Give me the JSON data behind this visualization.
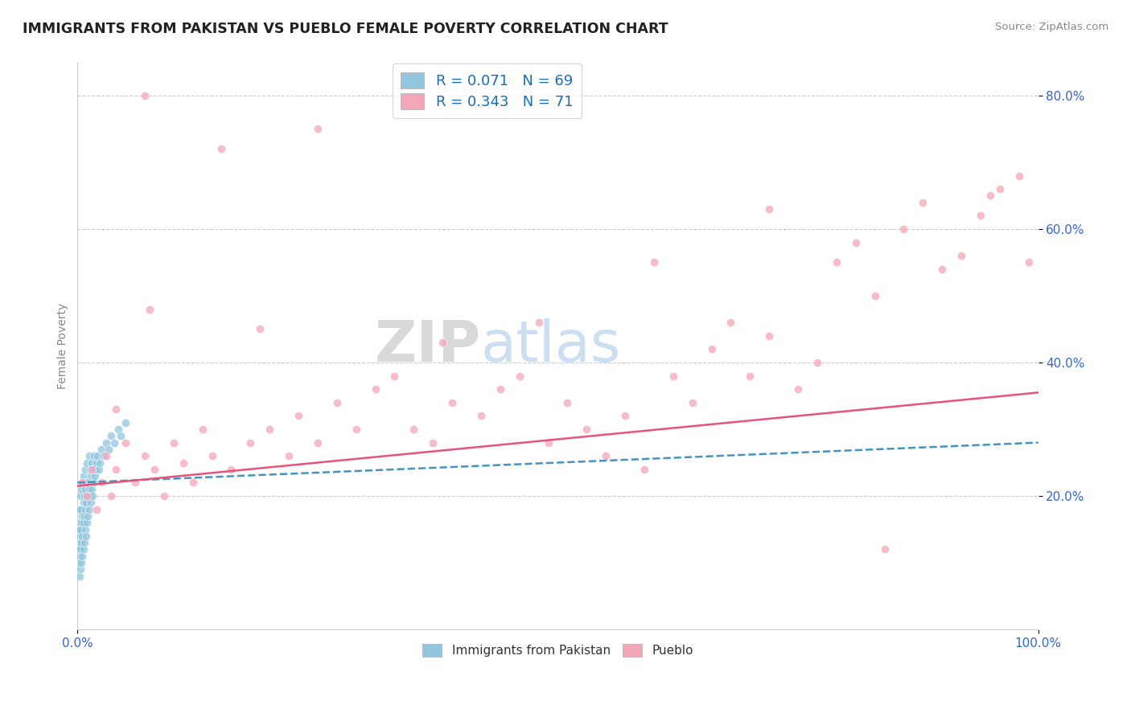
{
  "title": "IMMIGRANTS FROM PAKISTAN VS PUEBLO FEMALE POVERTY CORRELATION CHART",
  "source": "Source: ZipAtlas.com",
  "ylabel": "Female Poverty",
  "xlim": [
    0.0,
    1.0
  ],
  "ylim": [
    0.0,
    0.85
  ],
  "xtick_positions": [
    0.0,
    1.0
  ],
  "xtick_labels": [
    "0.0%",
    "100.0%"
  ],
  "ytick_values": [
    0.2,
    0.4,
    0.6,
    0.8
  ],
  "ytick_labels": [
    "20.0%",
    "40.0%",
    "60.0%",
    "80.0%"
  ],
  "legend_r_blue": "R = 0.071",
  "legend_n_blue": "N = 69",
  "legend_r_pink": "R = 0.343",
  "legend_n_pink": "N = 71",
  "legend_bottom_blue": "Immigrants from Pakistan",
  "legend_bottom_pink": "Pueblo",
  "blue_color": "#92c5de",
  "pink_color": "#f4a6b8",
  "blue_line_color": "#4393c3",
  "pink_line_color": "#e8537a",
  "background_color": "#ffffff",
  "grid_color": "#cccccc",
  "blue_scatter_x": [
    0.001,
    0.001,
    0.001,
    0.001,
    0.002,
    0.002,
    0.002,
    0.002,
    0.002,
    0.003,
    0.003,
    0.003,
    0.003,
    0.003,
    0.004,
    0.004,
    0.004,
    0.004,
    0.005,
    0.005,
    0.005,
    0.005,
    0.006,
    0.006,
    0.006,
    0.006,
    0.007,
    0.007,
    0.007,
    0.008,
    0.008,
    0.008,
    0.008,
    0.009,
    0.009,
    0.009,
    0.01,
    0.01,
    0.01,
    0.011,
    0.011,
    0.012,
    0.012,
    0.012,
    0.013,
    0.013,
    0.014,
    0.014,
    0.015,
    0.015,
    0.016,
    0.016,
    0.017,
    0.017,
    0.018,
    0.019,
    0.02,
    0.021,
    0.022,
    0.023,
    0.025,
    0.027,
    0.03,
    0.032,
    0.035,
    0.038,
    0.042,
    0.045,
    0.05
  ],
  "blue_scatter_y": [
    0.1,
    0.12,
    0.14,
    0.16,
    0.08,
    0.11,
    0.13,
    0.15,
    0.18,
    0.09,
    0.12,
    0.15,
    0.18,
    0.2,
    0.1,
    0.13,
    0.16,
    0.21,
    0.11,
    0.14,
    0.17,
    0.22,
    0.12,
    0.16,
    0.19,
    0.23,
    0.13,
    0.17,
    0.2,
    0.15,
    0.18,
    0.21,
    0.24,
    0.14,
    0.19,
    0.22,
    0.16,
    0.2,
    0.25,
    0.17,
    0.22,
    0.18,
    0.21,
    0.26,
    0.2,
    0.24,
    0.19,
    0.23,
    0.21,
    0.25,
    0.2,
    0.24,
    0.22,
    0.26,
    0.23,
    0.24,
    0.25,
    0.26,
    0.24,
    0.25,
    0.27,
    0.26,
    0.28,
    0.27,
    0.29,
    0.28,
    0.3,
    0.29,
    0.31
  ],
  "pink_scatter_x": [
    0.005,
    0.01,
    0.015,
    0.02,
    0.025,
    0.03,
    0.035,
    0.04,
    0.05,
    0.06,
    0.07,
    0.08,
    0.09,
    0.1,
    0.11,
    0.12,
    0.13,
    0.14,
    0.16,
    0.18,
    0.19,
    0.2,
    0.22,
    0.23,
    0.25,
    0.27,
    0.29,
    0.31,
    0.33,
    0.35,
    0.37,
    0.39,
    0.42,
    0.44,
    0.46,
    0.49,
    0.51,
    0.53,
    0.55,
    0.57,
    0.59,
    0.62,
    0.64,
    0.66,
    0.68,
    0.7,
    0.72,
    0.75,
    0.77,
    0.79,
    0.81,
    0.83,
    0.86,
    0.88,
    0.9,
    0.92,
    0.94,
    0.96,
    0.98,
    0.99,
    0.04,
    0.075,
    0.15,
    0.25,
    0.38,
    0.48,
    0.6,
    0.72,
    0.84,
    0.95,
    0.07
  ],
  "pink_scatter_y": [
    0.22,
    0.2,
    0.24,
    0.18,
    0.22,
    0.26,
    0.2,
    0.24,
    0.28,
    0.22,
    0.26,
    0.24,
    0.2,
    0.28,
    0.25,
    0.22,
    0.3,
    0.26,
    0.24,
    0.28,
    0.45,
    0.3,
    0.26,
    0.32,
    0.28,
    0.34,
    0.3,
    0.36,
    0.38,
    0.3,
    0.28,
    0.34,
    0.32,
    0.36,
    0.38,
    0.28,
    0.34,
    0.3,
    0.26,
    0.32,
    0.24,
    0.38,
    0.34,
    0.42,
    0.46,
    0.38,
    0.44,
    0.36,
    0.4,
    0.55,
    0.58,
    0.5,
    0.6,
    0.64,
    0.54,
    0.56,
    0.62,
    0.66,
    0.68,
    0.55,
    0.33,
    0.48,
    0.72,
    0.75,
    0.43,
    0.46,
    0.55,
    0.63,
    0.12,
    0.65,
    0.8
  ]
}
